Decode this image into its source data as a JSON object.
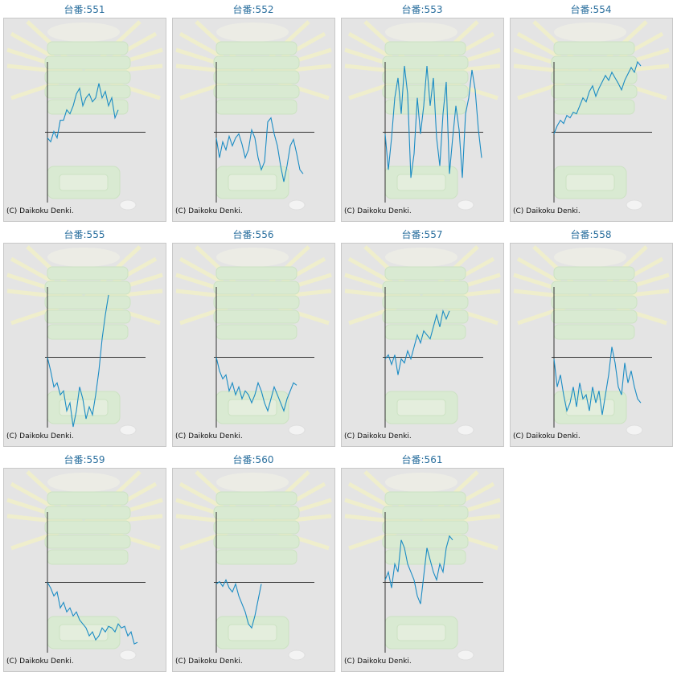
{
  "chart_data": [
    {
      "type": "line",
      "title": "台番:551",
      "credit": "(C) Daikoku Denki.",
      "xlim": [
        0,
        30
      ],
      "ylim": [
        -88,
        88
      ],
      "series": [
        {
          "color": "#1b8cc4",
          "values": [
            -7,
            -12,
            1,
            -7,
            15,
            15,
            28,
            23,
            33,
            48,
            55,
            33,
            43,
            48,
            38,
            43,
            61,
            43,
            51,
            33,
            43,
            18,
            28
          ]
        }
      ]
    },
    {
      "type": "line",
      "title": "台番:552",
      "credit": "(C) Daikoku Denki.",
      "xlim": [
        0,
        30
      ],
      "ylim": [
        -88,
        88
      ],
      "series": [
        {
          "color": "#1b8cc4",
          "values": [
            -7,
            -32,
            -12,
            -22,
            -5,
            -17,
            -7,
            -2,
            -15,
            -32,
            -22,
            3,
            -7,
            -32,
            -47,
            -37,
            13,
            18,
            -2,
            -17,
            -42,
            -62,
            -42,
            -17,
            -9,
            -27,
            -47,
            -52
          ]
        }
      ]
    },
    {
      "type": "line",
      "title": "台番:553",
      "credit": "(C) Daikoku Denki.",
      "xlim": [
        0,
        30
      ],
      "ylim": [
        -88,
        88
      ],
      "series": [
        {
          "color": "#1b8cc4",
          "values": [
            -2,
            -47,
            -7,
            43,
            68,
            23,
            83,
            48,
            -57,
            -27,
            43,
            -2,
            33,
            83,
            33,
            68,
            -7,
            -42,
            23,
            63,
            -52,
            -7,
            33,
            3,
            -57,
            23,
            43,
            78,
            53,
            3,
            -32
          ]
        }
      ]
    },
    {
      "type": "line",
      "title": "台番:554",
      "credit": "(C) Daikoku Denki.",
      "xlim": [
        0,
        30
      ],
      "ylim": [
        -88,
        88
      ],
      "series": [
        {
          "color": "#1b8cc4",
          "values": [
            -2,
            8,
            15,
            11,
            21,
            18,
            25,
            23,
            33,
            43,
            38,
            51,
            58,
            45,
            55,
            63,
            71,
            65,
            75,
            68,
            61,
            53,
            65,
            73,
            81,
            75,
            88,
            83
          ]
        }
      ]
    },
    {
      "type": "line",
      "title": "台番:555",
      "credit": "(C) Daikoku Denki.",
      "xlim": [
        0,
        30
      ],
      "ylim": [
        -88,
        88
      ],
      "series": [
        {
          "color": "#1b8cc4",
          "values": [
            0,
            -17,
            -37,
            -32,
            -47,
            -42,
            -67,
            -57,
            -87,
            -67,
            -37,
            -52,
            -77,
            -62,
            -72,
            -47,
            -17,
            23,
            53,
            78
          ]
        }
      ]
    },
    {
      "type": "line",
      "title": "台番:556",
      "credit": "(C) Daikoku Denki.",
      "xlim": [
        0,
        30
      ],
      "ylim": [
        -88,
        88
      ],
      "series": [
        {
          "color": "#1b8cc4",
          "values": [
            0,
            -17,
            -27,
            -22,
            -42,
            -32,
            -47,
            -37,
            -52,
            -42,
            -47,
            -57,
            -47,
            -32,
            -42,
            -57,
            -67,
            -52,
            -37,
            -47,
            -57,
            -67,
            -52,
            -42,
            -32,
            -35
          ]
        }
      ]
    },
    {
      "type": "line",
      "title": "台番:557",
      "credit": "(C) Daikoku Denki.",
      "xlim": [
        0,
        30
      ],
      "ylim": [
        -88,
        88
      ],
      "series": [
        {
          "color": "#1b8cc4",
          "values": [
            -2,
            3,
            -9,
            3,
            -22,
            -2,
            -7,
            8,
            -2,
            13,
            28,
            18,
            33,
            28,
            23,
            38,
            53,
            38,
            58,
            48,
            58
          ]
        }
      ]
    },
    {
      "type": "line",
      "title": "台番:558",
      "credit": "(C) Daikoku Denki.",
      "xlim": [
        0,
        30
      ],
      "ylim": [
        -88,
        88
      ],
      "series": [
        {
          "color": "#1b8cc4",
          "values": [
            -2,
            -37,
            -22,
            -47,
            -67,
            -57,
            -37,
            -62,
            -32,
            -52,
            -47,
            -67,
            -37,
            -57,
            -42,
            -72,
            -47,
            -22,
            13,
            -7,
            -37,
            -47,
            -7,
            -32,
            -17,
            -37,
            -52,
            -57
          ]
        }
      ]
    },
    {
      "type": "line",
      "title": "台番:559",
      "credit": "(C) Daikoku Denki.",
      "xlim": [
        0,
        30
      ],
      "ylim": [
        -88,
        88
      ],
      "series": [
        {
          "color": "#1b8cc4",
          "values": [
            0,
            -7,
            -17,
            -12,
            -32,
            -25,
            -37,
            -32,
            -42,
            -37,
            -47,
            -52,
            -57,
            -67,
            -62,
            -72,
            -67,
            -57,
            -62,
            -55,
            -57,
            -62,
            -52,
            -57,
            -55,
            -67,
            -62,
            -77,
            -75
          ]
        }
      ]
    },
    {
      "type": "line",
      "title": "台番:560",
      "credit": "(C) Daikoku Denki.",
      "xlim": [
        0,
        30
      ],
      "ylim": [
        -88,
        88
      ],
      "series": [
        {
          "color": "#1b8cc4",
          "values": [
            -2,
            1,
            -5,
            3,
            -7,
            -12,
            -2,
            -17,
            -27,
            -37,
            -52,
            -57,
            -42,
            -22,
            -2
          ]
        }
      ]
    },
    {
      "type": "line",
      "title": "台番:561",
      "credit": "(C) Daikoku Denki.",
      "xlim": [
        0,
        30
      ],
      "ylim": [
        -88,
        88
      ],
      "series": [
        {
          "color": "#1b8cc4",
          "values": [
            3,
            13,
            -7,
            23,
            13,
            53,
            43,
            23,
            13,
            3,
            -17,
            -27,
            8,
            43,
            28,
            13,
            3,
            23,
            13,
            43,
            58,
            53
          ]
        }
      ]
    }
  ]
}
